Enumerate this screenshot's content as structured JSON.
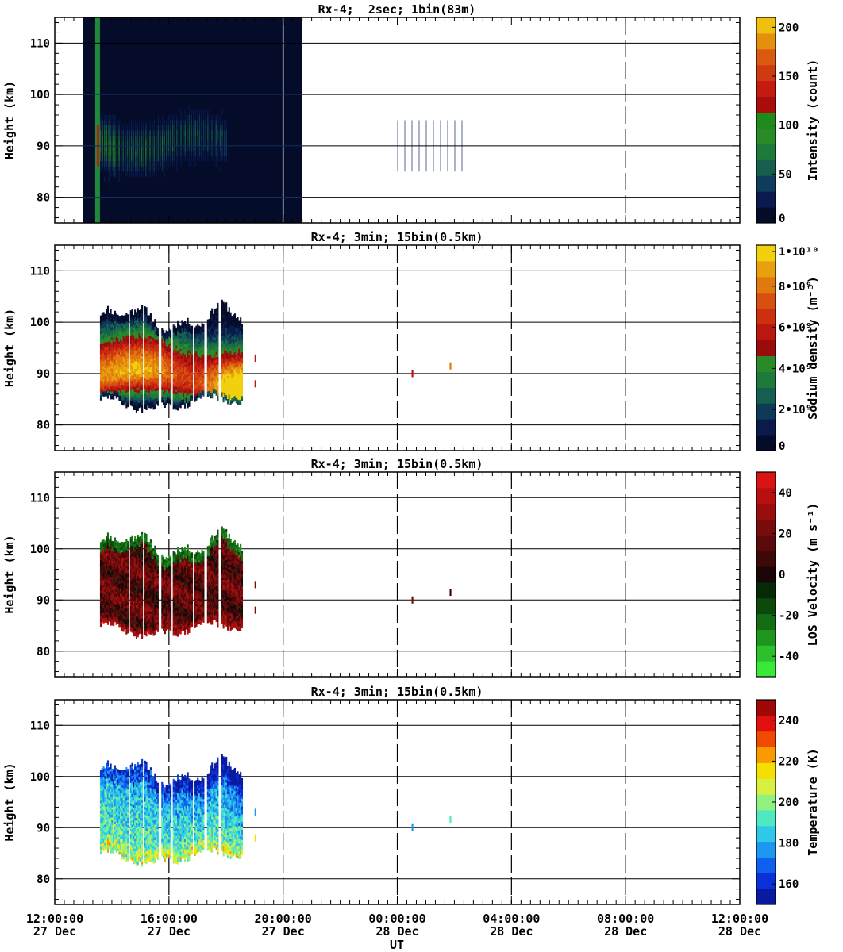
{
  "figure": {
    "x_title": "UT",
    "x_ticks": [
      {
        "time": "12:00:00",
        "date": "27 Dec"
      },
      {
        "time": "16:00:00",
        "date": "27 Dec"
      },
      {
        "time": "20:00:00",
        "date": "27 Dec"
      },
      {
        "time": "00:00:00",
        "date": "28 Dec"
      },
      {
        "time": "04:00:00",
        "date": "28 Dec"
      },
      {
        "time": "08:00:00",
        "date": "28 Dec"
      },
      {
        "time": "12:00:00",
        "date": "28 Dec"
      }
    ]
  },
  "chart_data": [
    {
      "type": "heatmap",
      "title": "Rx-4;  2sec; 1bin(83m)",
      "ylabel": "Height (km)",
      "xlabel": "UT",
      "xlim": [
        "2023-12-27 12:00:00",
        "2023-12-28 12:00:00"
      ],
      "ylim": [
        75,
        115
      ],
      "yticks": [
        80,
        90,
        100,
        110
      ],
      "colorbar": {
        "label": "Intensity (count)",
        "ticks": [
          "0",
          "50",
          "100",
          "150",
          "200"
        ],
        "range": [
          0,
          210
        ],
        "colors": [
          "#050c2a",
          "#0b1a4e",
          "#103c5c",
          "#165e4e",
          "#1e7a3a",
          "#2a8a2a",
          "#1f8a1c",
          "#a80c0c",
          "#c41a10",
          "#d03a10",
          "#da5a10",
          "#e4900e",
          "#f0c00e"
        ]
      },
      "data_coverage": {
        "start": "13:00",
        "end": "20:40"
      },
      "features": [
        {
          "label": "bright band",
          "start": "13:25",
          "end": "13:35",
          "value": 90
        },
        {
          "label": "sodium layer",
          "start": "13:35",
          "end": "18:00",
          "y_range": [
            83,
            100
          ],
          "peak_height": 90
        }
      ]
    },
    {
      "type": "heatmap",
      "title": "Rx-4; 3min; 15bin(0.5km)",
      "ylabel": "Height (km)",
      "ylim": [
        75,
        115
      ],
      "yticks": [
        80,
        90,
        100,
        110
      ],
      "colorbar": {
        "label": "Sodium density (m⁻³)",
        "ticks": [
          "0",
          "2•10⁹",
          "4•10⁹",
          "6•10⁹",
          "8•10⁹",
          "1•10¹⁰"
        ],
        "range": [
          0,
          10000000000.0
        ],
        "colors": [
          "#050c2a",
          "#0a1a4a",
          "#0e3a58",
          "#165e4e",
          "#1e7a3a",
          "#2a8a2a",
          "#9a0c0c",
          "#b81810",
          "#cc3010",
          "#d85010",
          "#e07a0e",
          "#e8a00e",
          "#f2d00e"
        ]
      },
      "layer": {
        "start": "13:35",
        "end": "18:35",
        "bottom_km": 83,
        "top_km": 102,
        "peak_km": 89.5,
        "peak_density": 9500000000.0
      },
      "isolated_points": [
        {
          "time": "19:00",
          "height_km": 93,
          "value": 6000000000.0
        },
        {
          "time": "19:00",
          "height_km": 88,
          "value": 6000000000.0
        },
        {
          "time": "00:30",
          "height_km": 90,
          "value": 6000000000.0
        },
        {
          "time": "01:50",
          "height_km": 91.5,
          "value": 8000000000.0
        }
      ]
    },
    {
      "type": "heatmap",
      "title": "Rx-4; 3min; 15bin(0.5km)",
      "ylabel": "Height (km)",
      "ylim": [
        75,
        115
      ],
      "yticks": [
        80,
        90,
        100,
        110
      ],
      "colorbar": {
        "label": "LOS Velocity (m s⁻¹)",
        "ticks": [
          "-40",
          "-20",
          "0",
          "20",
          "40"
        ],
        "range": [
          -50,
          50
        ],
        "colors": [
          "#3ae83a",
          "#2cc02c",
          "#1e961e",
          "#146c14",
          "#0c4a0c",
          "#062a06",
          "#1a0606",
          "#3c0808",
          "#5a0a0a",
          "#780c0c",
          "#980e0e",
          "#b81010",
          "#d81414"
        ]
      },
      "layer": {
        "start": "13:35",
        "end": "18:35",
        "bottom_km": 83,
        "top_km": 102,
        "typical_velocity": 15,
        "top_edge_velocity": -30
      },
      "isolated_points": [
        {
          "time": "19:00",
          "height_km": 93,
          "value": 20
        },
        {
          "time": "19:00",
          "height_km": 88,
          "value": 20
        },
        {
          "time": "00:30",
          "height_km": 90,
          "value": 20
        },
        {
          "time": "01:50",
          "height_km": 91.5,
          "value": 10
        }
      ]
    },
    {
      "type": "heatmap",
      "title": "Rx-4; 3min; 15bin(0.5km)",
      "ylabel": "Height (km)",
      "ylim": [
        75,
        115
      ],
      "yticks": [
        80,
        90,
        100,
        110
      ],
      "colorbar": {
        "label": "Temperature (K)",
        "ticks": [
          "160",
          "180",
          "200",
          "220",
          "240"
        ],
        "range": [
          150,
          250
        ],
        "colors": [
          "#0a1aa0",
          "#0c30d8",
          "#1060f0",
          "#1c98f0",
          "#30c8e8",
          "#50e8c0",
          "#90f080",
          "#d8f040",
          "#f4e000",
          "#f89a00",
          "#f04a00",
          "#e01010",
          "#a00808"
        ]
      },
      "layer": {
        "start": "13:35",
        "end": "18:35",
        "bottom_km": 83,
        "top_km": 102,
        "lower_temp": 195,
        "upper_temp": 165
      },
      "isolated_points": [
        {
          "time": "19:00",
          "height_km": 93,
          "value": 180
        },
        {
          "time": "19:00",
          "height_km": 88,
          "value": 215
        },
        {
          "time": "00:30",
          "height_km": 90,
          "value": 180
        },
        {
          "time": "01:50",
          "height_km": 91.5,
          "value": 195
        }
      ]
    }
  ]
}
